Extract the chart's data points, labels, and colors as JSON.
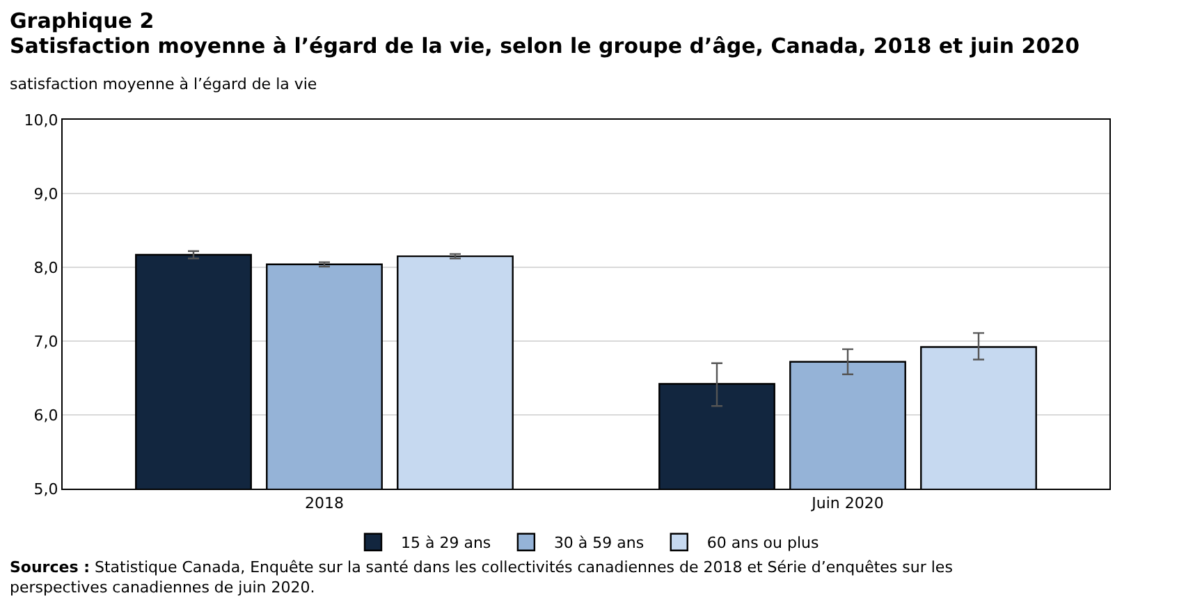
{
  "chart_data": {
    "type": "bar",
    "title": "Graphique 2",
    "subtitle": "Satisfaction moyenne à l’égard de la vie, selon le groupe d’âge, Canada, 2018 et juin 2020",
    "ylabel": "satisfaction moyenne à l’égard de la vie",
    "categories": [
      "2018",
      "Juin 2020"
    ],
    "series": [
      {
        "name": "15 à 29 ans",
        "color": "#12263f",
        "values": [
          8.17,
          6.42
        ],
        "errors": [
          [
            8.12,
            8.22
          ],
          [
            6.12,
            6.7
          ]
        ]
      },
      {
        "name": "30 à 59 ans",
        "color": "#95b3d7",
        "values": [
          8.04,
          6.72
        ],
        "errors": [
          [
            8.01,
            8.07
          ],
          [
            6.55,
            6.89
          ]
        ]
      },
      {
        "name": "60 ans ou plus",
        "color": "#c6d9f0",
        "values": [
          8.15,
          6.92
        ],
        "errors": [
          [
            8.12,
            8.18
          ],
          [
            6.75,
            7.11
          ]
        ]
      }
    ],
    "ylim": [
      5,
      10
    ],
    "yticks": [
      {
        "value": 5,
        "label": "5,0"
      },
      {
        "value": 6,
        "label": "6,0"
      },
      {
        "value": 7,
        "label": "7,0"
      },
      {
        "value": 8,
        "label": "8,0"
      },
      {
        "value": 9,
        "label": "9,0"
      },
      {
        "value": 10,
        "label": "10,0"
      }
    ],
    "grid": "y",
    "legend": "bottom",
    "annotations": [
      "Sources : Statistique Canada, Enquête sur la santé dans les collectivités canadiennes de 2018 et Série d’enquêtes sur les perspectives canadiennes de juin 2020."
    ]
  }
}
